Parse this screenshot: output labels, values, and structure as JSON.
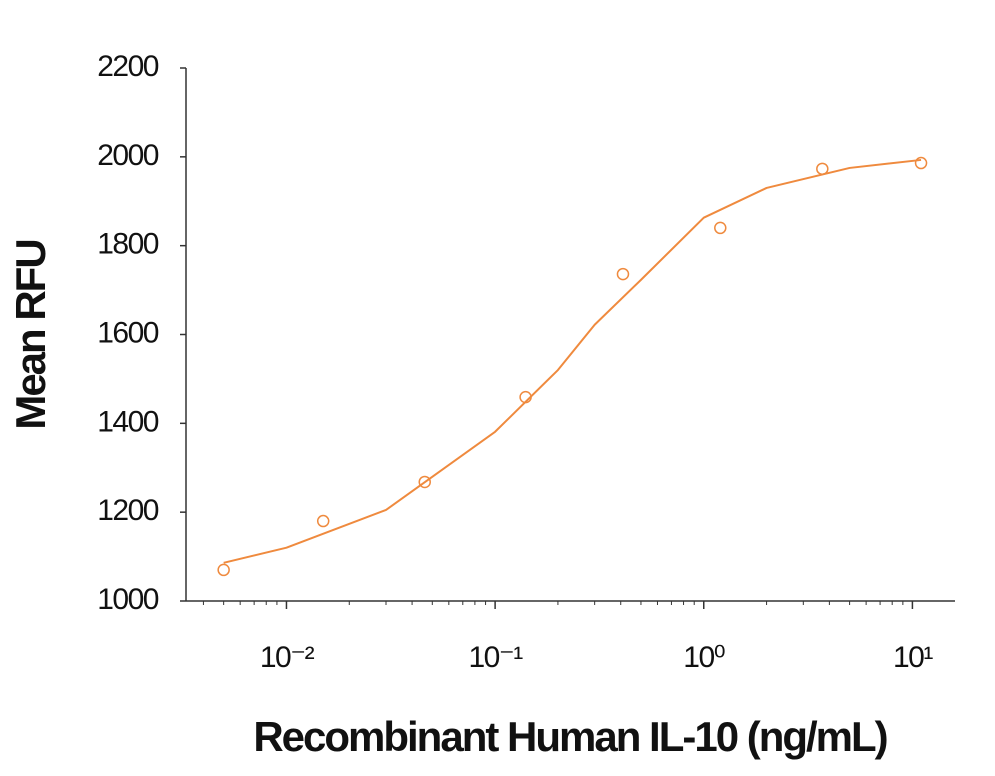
{
  "chart_data": {
    "type": "scatter",
    "x_label": "Recombinant Human IL-10 (ng/mL)",
    "y_label": "Mean RFU",
    "log_x": true,
    "xlim": [
      0.0033,
      16
    ],
    "xticks": [
      {
        "value": 0.01,
        "label": "10⁻²"
      },
      {
        "value": 0.1,
        "label": "10⁻¹"
      },
      {
        "value": 1,
        "label": "10⁰"
      },
      {
        "value": 10,
        "label": "10¹"
      }
    ],
    "xminorticks": [
      0.004,
      0.005,
      0.006,
      0.007,
      0.008,
      0.009,
      0.02,
      0.03,
      0.04,
      0.05,
      0.06,
      0.07,
      0.08,
      0.09,
      0.2,
      0.3,
      0.4,
      0.5,
      0.6,
      0.7,
      0.8,
      0.9,
      2,
      3,
      4,
      5,
      6,
      7,
      8,
      9
    ],
    "ylim": [
      1000,
      2200
    ],
    "yticks": [
      1000,
      1200,
      1400,
      1600,
      1800,
      2000,
      2200
    ],
    "series": [
      {
        "kind": "points",
        "color": "#ef8a3e",
        "x": [
          0.005,
          0.015,
          0.046,
          0.14,
          0.41,
          1.2,
          3.7,
          11
        ],
        "values": [
          1070,
          1180,
          1268,
          1459,
          1736,
          1840,
          1973,
          1986
        ]
      },
      {
        "kind": "line",
        "color": "#ef8a3e",
        "x": [
          0.005,
          0.01,
          0.03,
          0.1,
          0.2,
          0.3,
          0.5,
          1,
          2,
          5,
          11
        ],
        "values": [
          1086,
          1120,
          1205,
          1381,
          1520,
          1622,
          1723,
          1863,
          1930,
          1975,
          1993
        ]
      }
    ]
  }
}
